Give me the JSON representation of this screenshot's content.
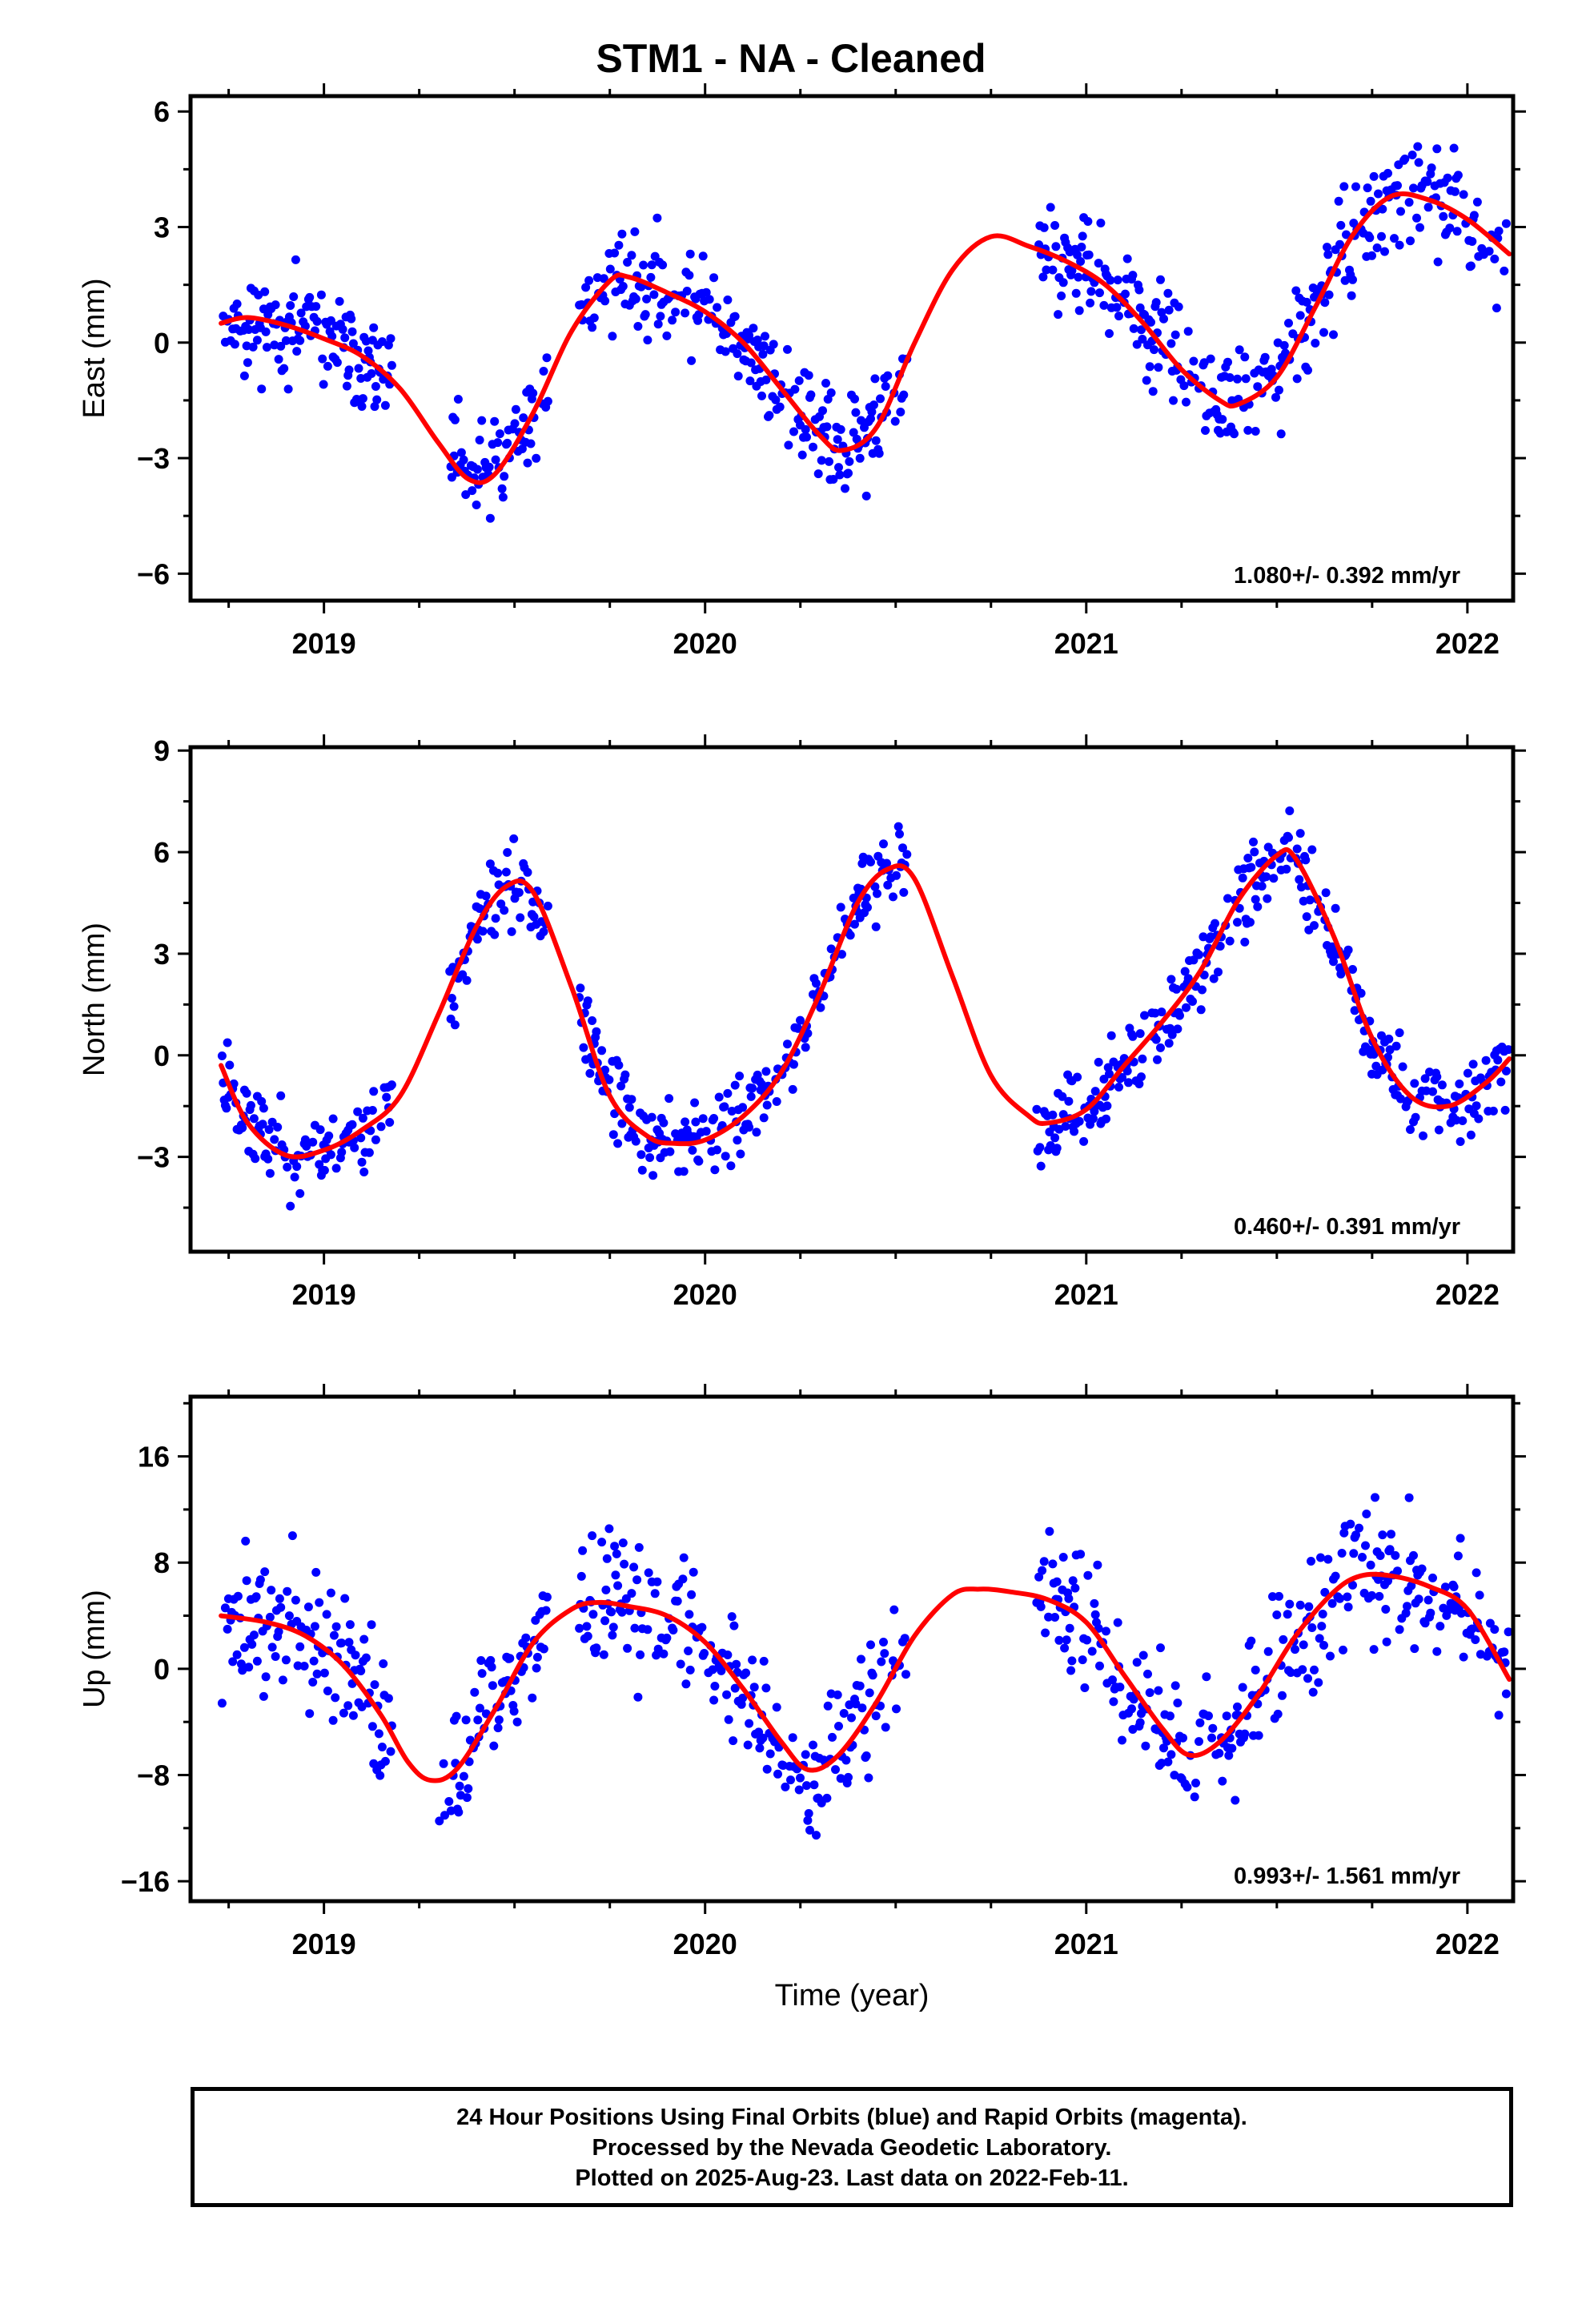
{
  "title": "STM1  - NA - Cleaned",
  "footer": {
    "line1": "24 Hour Positions Using Final Orbits (blue) and Rapid Orbits (magenta).",
    "line2": "Processed by the Nevada Geodetic Laboratory.",
    "line3": "Plotted on 2025-Aug-23. Last data on 2022-Feb-11."
  },
  "colors": {
    "points": "#0000ff",
    "fit": "#ff0000",
    "frame": "#000000"
  },
  "chart_data": [
    {
      "type": "scatter",
      "ylabel": "East (mm)",
      "xlabel": "",
      "xlim": [
        2018.65,
        2022.12
      ],
      "ylim": [
        -6.7,
        6.4
      ],
      "xticks": [
        2019,
        2020,
        2021,
        2022
      ],
      "yticks": [
        -6,
        -3,
        0,
        3,
        6
      ],
      "ytick_labels": [
        "−6",
        "−3",
        "0",
        "3",
        "6"
      ],
      "rate_label": "1.080+/- 0.392 mm/yr",
      "data_segments": [
        [
          2018.73,
          2019.18
        ],
        [
          2019.33,
          2019.59
        ],
        [
          2019.67,
          2020.53
        ],
        [
          2020.87,
          2022.11
        ]
      ],
      "seed": 11,
      "noise": 1.0,
      "fit": [
        [
          2018.73,
          0.5
        ],
        [
          2018.8,
          0.65
        ],
        [
          2018.9,
          0.45
        ],
        [
          2019.0,
          0.1
        ],
        [
          2019.1,
          -0.35
        ],
        [
          2019.2,
          -1.2
        ],
        [
          2019.3,
          -2.6
        ],
        [
          2019.38,
          -3.55
        ],
        [
          2019.45,
          -3.4
        ],
        [
          2019.55,
          -1.8
        ],
        [
          2019.65,
          0.3
        ],
        [
          2019.75,
          1.6
        ],
        [
          2019.8,
          1.7
        ],
        [
          2019.9,
          1.3
        ],
        [
          2020.0,
          0.8
        ],
        [
          2020.1,
          0.0
        ],
        [
          2020.2,
          -1.2
        ],
        [
          2020.3,
          -2.4
        ],
        [
          2020.36,
          -2.8
        ],
        [
          2020.45,
          -2.2
        ],
        [
          2020.55,
          0.0
        ],
        [
          2020.65,
          1.9
        ],
        [
          2020.75,
          2.75
        ],
        [
          2020.85,
          2.5
        ],
        [
          2020.95,
          2.1
        ],
        [
          2021.05,
          1.5
        ],
        [
          2021.15,
          0.5
        ],
        [
          2021.25,
          -0.7
        ],
        [
          2021.35,
          -1.5
        ],
        [
          2021.4,
          -1.6
        ],
        [
          2021.5,
          -0.9
        ],
        [
          2021.6,
          0.9
        ],
        [
          2021.7,
          2.8
        ],
        [
          2021.8,
          3.8
        ],
        [
          2021.9,
          3.7
        ],
        [
          2022.0,
          3.2
        ],
        [
          2022.11,
          2.3
        ]
      ]
    },
    {
      "type": "scatter",
      "ylabel": "North (mm)",
      "xlabel": "",
      "xlim": [
        2018.65,
        2022.12
      ],
      "ylim": [
        -5.8,
        9.1
      ],
      "xticks": [
        2019,
        2020,
        2021,
        2022
      ],
      "yticks": [
        -3,
        0,
        3,
        6,
        9
      ],
      "ytick_labels": [
        "−3",
        "0",
        "3",
        "6",
        "9"
      ],
      "rate_label": "0.460+/- 0.391 mm/yr",
      "data_segments": [
        [
          2018.73,
          2019.18
        ],
        [
          2019.33,
          2019.59
        ],
        [
          2019.67,
          2020.53
        ],
        [
          2020.87,
          2022.11
        ]
      ],
      "seed": 23,
      "noise": 0.9,
      "fit": [
        [
          2018.73,
          -0.3
        ],
        [
          2018.8,
          -2.0
        ],
        [
          2018.9,
          -2.95
        ],
        [
          2019.0,
          -2.8
        ],
        [
          2019.1,
          -2.2
        ],
        [
          2019.2,
          -1.2
        ],
        [
          2019.3,
          1.2
        ],
        [
          2019.4,
          3.8
        ],
        [
          2019.48,
          5.0
        ],
        [
          2019.55,
          4.8
        ],
        [
          2019.65,
          2.0
        ],
        [
          2019.75,
          -1.2
        ],
        [
          2019.85,
          -2.4
        ],
        [
          2019.92,
          -2.6
        ],
        [
          2020.0,
          -2.5
        ],
        [
          2020.1,
          -1.8
        ],
        [
          2020.2,
          -0.5
        ],
        [
          2020.3,
          1.8
        ],
        [
          2020.4,
          4.5
        ],
        [
          2020.48,
          5.5
        ],
        [
          2020.55,
          5.2
        ],
        [
          2020.65,
          2.3
        ],
        [
          2020.75,
          -0.6
        ],
        [
          2020.85,
          -1.8
        ],
        [
          2020.9,
          -2.0
        ],
        [
          2021.0,
          -1.6
        ],
        [
          2021.1,
          -0.3
        ],
        [
          2021.2,
          1.0
        ],
        [
          2021.3,
          2.5
        ],
        [
          2021.4,
          4.6
        ],
        [
          2021.5,
          5.9
        ],
        [
          2021.55,
          5.8
        ],
        [
          2021.65,
          3.5
        ],
        [
          2021.75,
          0.5
        ],
        [
          2021.85,
          -1.2
        ],
        [
          2021.95,
          -1.5
        ],
        [
          2022.05,
          -0.8
        ],
        [
          2022.11,
          -0.1
        ]
      ]
    },
    {
      "type": "scatter",
      "ylabel": "Up (mm)",
      "xlabel": "Time (year)",
      "xlim": [
        2018.65,
        2022.12
      ],
      "ylim": [
        -17.5,
        20.5
      ],
      "xticks": [
        2019,
        2020,
        2021,
        2022
      ],
      "yticks": [
        -16,
        -8,
        0,
        8,
        16
      ],
      "ytick_labels": [
        "−16",
        "−8",
        "0",
        "8",
        "16"
      ],
      "rate_label": "0.993+/- 1.561 mm/yr",
      "data_segments": [
        [
          2018.73,
          2019.18
        ],
        [
          2019.3,
          2019.59
        ],
        [
          2019.67,
          2020.53
        ],
        [
          2020.87,
          2022.11
        ]
      ],
      "seed": 37,
      "noise": 4.0,
      "fit": [
        [
          2018.73,
          4.0
        ],
        [
          2018.85,
          3.5
        ],
        [
          2018.95,
          2.5
        ],
        [
          2019.05,
          0.3
        ],
        [
          2019.15,
          -3.5
        ],
        [
          2019.22,
          -7.0
        ],
        [
          2019.28,
          -8.4
        ],
        [
          2019.35,
          -7.5
        ],
        [
          2019.45,
          -3.0
        ],
        [
          2019.55,
          2.0
        ],
        [
          2019.65,
          4.5
        ],
        [
          2019.72,
          5.0
        ],
        [
          2019.8,
          4.7
        ],
        [
          2019.9,
          4.0
        ],
        [
          2020.0,
          2.0
        ],
        [
          2020.1,
          -1.5
        ],
        [
          2020.2,
          -5.5
        ],
        [
          2020.27,
          -7.6
        ],
        [
          2020.35,
          -6.5
        ],
        [
          2020.45,
          -2.5
        ],
        [
          2020.55,
          2.5
        ],
        [
          2020.65,
          5.6
        ],
        [
          2020.72,
          6.0
        ],
        [
          2020.8,
          5.8
        ],
        [
          2020.9,
          5.2
        ],
        [
          2021.0,
          3.5
        ],
        [
          2021.1,
          -0.5
        ],
        [
          2021.2,
          -4.5
        ],
        [
          2021.27,
          -6.5
        ],
        [
          2021.35,
          -5.5
        ],
        [
          2021.45,
          -2.0
        ],
        [
          2021.55,
          2.5
        ],
        [
          2021.65,
          5.8
        ],
        [
          2021.72,
          7.0
        ],
        [
          2021.8,
          7.0
        ],
        [
          2021.9,
          6.2
        ],
        [
          2022.0,
          4.5
        ],
        [
          2022.11,
          -0.8
        ]
      ]
    }
  ]
}
